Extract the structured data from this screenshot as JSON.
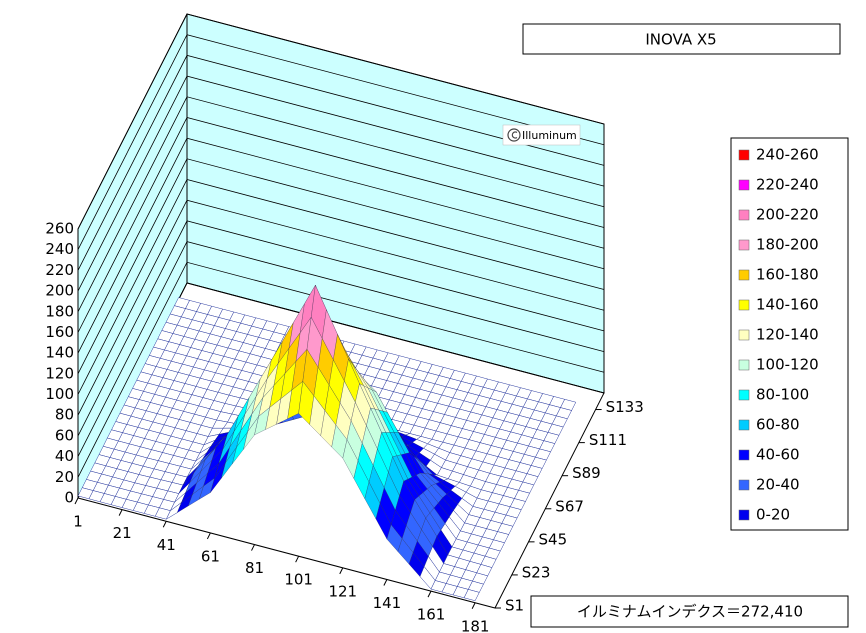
{
  "chart_data": {
    "type": "surface3d",
    "title": "INOVA X5",
    "annotation": "イルミナムインデクス＝272,410",
    "watermark": "Illuminum",
    "x": [
      1,
      21,
      41,
      61,
      81,
      101,
      121,
      141,
      161,
      181
    ],
    "y": [
      1,
      23,
      45,
      67,
      89,
      111,
      133
    ],
    "values": [
      [
        2,
        2,
        2,
        39,
        106,
        138,
        106,
        39,
        2,
        2
      ],
      [
        2,
        2,
        3,
        63,
        146,
        230,
        146,
        63,
        3,
        2
      ],
      [
        2,
        2,
        2,
        39,
        106,
        138,
        106,
        39,
        2,
        2
      ],
      [
        2,
        2,
        2,
        5,
        28,
        46,
        28,
        5,
        2,
        2
      ],
      [
        2,
        2,
        2,
        2,
        2,
        2,
        2,
        2,
        2,
        2
      ],
      [
        2,
        2,
        2,
        2,
        2,
        2,
        2,
        2,
        2,
        2
      ],
      [
        2,
        2,
        2,
        2,
        2,
        2,
        2,
        2,
        2,
        2
      ]
    ],
    "xlim": [
      1,
      190
    ],
    "ylim": [
      1,
      144
    ],
    "zlim": [
      0,
      260
    ],
    "xticks": [
      1,
      21,
      41,
      61,
      81,
      101,
      121,
      141,
      161,
      181
    ],
    "yticks": [
      {
        "value": 1,
        "label": "S1"
      },
      {
        "value": 23,
        "label": "S23"
      },
      {
        "value": 45,
        "label": "S45"
      },
      {
        "value": 67,
        "label": "S67"
      },
      {
        "value": 89,
        "label": "S89"
      },
      {
        "value": 111,
        "label": "S111"
      },
      {
        "value": 133,
        "label": "S133"
      }
    ],
    "zticks": [
      0,
      20,
      40,
      60,
      80,
      100,
      120,
      140,
      160,
      180,
      200,
      220,
      240,
      260
    ],
    "series": [
      {
        "name": "240-260",
        "color": "#ff0000"
      },
      {
        "name": "220-240",
        "color": "#ff00ff"
      },
      {
        "name": "200-220",
        "color": "#ff80c0"
      },
      {
        "name": "180-200",
        "color": "#ff99cc"
      },
      {
        "name": "160-180",
        "color": "#ffcc00"
      },
      {
        "name": "140-160",
        "color": "#ffff00"
      },
      {
        "name": "120-140",
        "color": "#ffffc0"
      },
      {
        "name": "100-120",
        "color": "#c8ffe0"
      },
      {
        "name": "80-100",
        "color": "#00ffff"
      },
      {
        "name": "60-80",
        "color": "#00ccff"
      },
      {
        "name": "40-60",
        "color": "#0000ff"
      },
      {
        "name": "20-40",
        "color": "#3366ff"
      },
      {
        "name": "0-20",
        "color": "#0000ee"
      }
    ],
    "wall_color": "#ccffff",
    "legend": "right"
  }
}
